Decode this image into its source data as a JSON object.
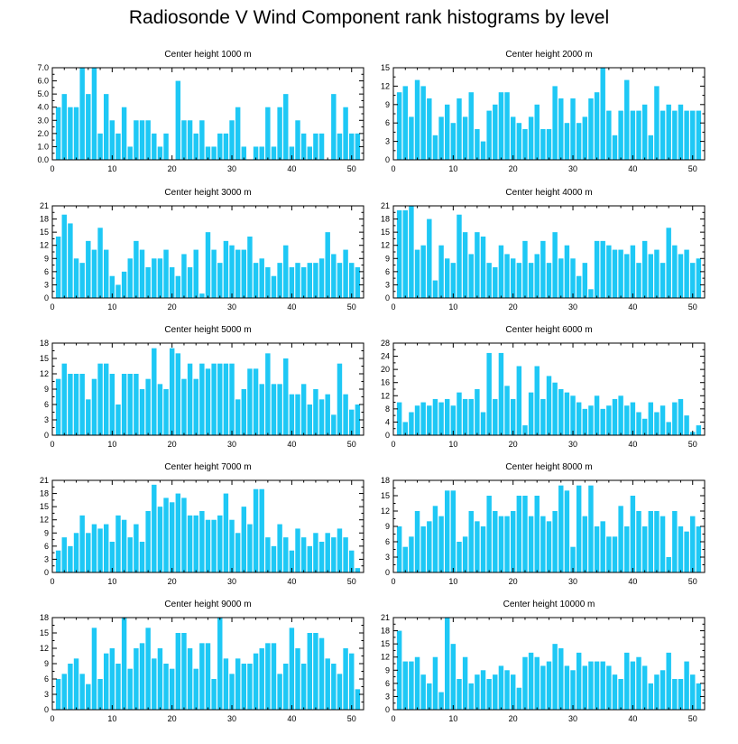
{
  "figure_title": "Radiosonde V Wind Component rank histograms by level",
  "colors": {
    "bar": "#1EC8F5",
    "axis": "#000000",
    "background": "#ffffff"
  },
  "chart_data": [
    {
      "type": "bar",
      "title": "Center height 1000 m",
      "xlim": [
        0,
        52
      ],
      "ylim": [
        0,
        7
      ],
      "xticks": [
        "0",
        "10",
        "20",
        "30",
        "40",
        "50"
      ],
      "yticks": [
        "0.0",
        "1.0",
        "2.0",
        "3.0",
        "4.0",
        "5.0",
        "6.0",
        "7.0"
      ],
      "x": [
        1,
        2,
        3,
        4,
        5,
        6,
        7,
        8,
        9,
        10,
        11,
        12,
        13,
        14,
        15,
        16,
        17,
        18,
        19,
        20,
        21,
        22,
        23,
        24,
        25,
        26,
        27,
        28,
        29,
        30,
        31,
        32,
        33,
        34,
        35,
        36,
        37,
        38,
        39,
        40,
        41,
        42,
        43,
        44,
        45,
        46,
        47,
        48,
        49,
        50,
        51
      ],
      "values": [
        4,
        5,
        4,
        4,
        7,
        5,
        7,
        2,
        5,
        3,
        2,
        4,
        1,
        3,
        3,
        3,
        2,
        1,
        2,
        0,
        6,
        3,
        3,
        2,
        3,
        1,
        1,
        2,
        2,
        3,
        4,
        1,
        0,
        1,
        1,
        4,
        1,
        4,
        5,
        1,
        3,
        2,
        1,
        2,
        2,
        0,
        5,
        2,
        4,
        2,
        2
      ]
    },
    {
      "type": "bar",
      "title": "Center height 2000 m",
      "xlim": [
        0,
        52
      ],
      "ylim": [
        0,
        15
      ],
      "xticks": [
        "0",
        "10",
        "20",
        "30",
        "40",
        "50"
      ],
      "yticks": [
        "0",
        "3",
        "6",
        "9",
        "12",
        "15"
      ],
      "x": [
        1,
        2,
        3,
        4,
        5,
        6,
        7,
        8,
        9,
        10,
        11,
        12,
        13,
        14,
        15,
        16,
        17,
        18,
        19,
        20,
        21,
        22,
        23,
        24,
        25,
        26,
        27,
        28,
        29,
        30,
        31,
        32,
        33,
        34,
        35,
        36,
        37,
        38,
        39,
        40,
        41,
        42,
        43,
        44,
        45,
        46,
        47,
        48,
        49,
        50,
        51
      ],
      "values": [
        11,
        12,
        7,
        13,
        12,
        10,
        4,
        7,
        9,
        6,
        10,
        7,
        11,
        5,
        3,
        8,
        9,
        11,
        11,
        7,
        6,
        5,
        7,
        9,
        5,
        5,
        12,
        10,
        6,
        10,
        6,
        7,
        10,
        11,
        15,
        8,
        4,
        8,
        13,
        8,
        8,
        9,
        4,
        12,
        8,
        9,
        8,
        9,
        8,
        8,
        8
      ]
    },
    {
      "type": "bar",
      "title": "Center height 3000 m",
      "xlim": [
        0,
        52
      ],
      "ylim": [
        0,
        21
      ],
      "xticks": [
        "0",
        "10",
        "20",
        "30",
        "40",
        "50"
      ],
      "yticks": [
        "0",
        "3",
        "6",
        "9",
        "12",
        "15",
        "18",
        "21"
      ],
      "x": [
        1,
        2,
        3,
        4,
        5,
        6,
        7,
        8,
        9,
        10,
        11,
        12,
        13,
        14,
        15,
        16,
        17,
        18,
        19,
        20,
        21,
        22,
        23,
        24,
        25,
        26,
        27,
        28,
        29,
        30,
        31,
        32,
        33,
        34,
        35,
        36,
        37,
        38,
        39,
        40,
        41,
        42,
        43,
        44,
        45,
        46,
        47,
        48,
        49,
        50,
        51
      ],
      "values": [
        14,
        19,
        17,
        9,
        8,
        13,
        11,
        16,
        11,
        5,
        3,
        6,
        9,
        13,
        11,
        7,
        9,
        9,
        11,
        7,
        5,
        10,
        7,
        11,
        1,
        15,
        11,
        8,
        13,
        12,
        11,
        11,
        14,
        8,
        9,
        7,
        5,
        8,
        12,
        7,
        8,
        7,
        8,
        8,
        9,
        15,
        10,
        8,
        11,
        8,
        7
      ]
    },
    {
      "type": "bar",
      "title": "Center height 4000 m",
      "xlim": [
        0,
        52
      ],
      "ylim": [
        0,
        21
      ],
      "xticks": [
        "0",
        "10",
        "20",
        "30",
        "40",
        "50"
      ],
      "yticks": [
        "0",
        "3",
        "6",
        "9",
        "12",
        "15",
        "18",
        "21"
      ],
      "x": [
        1,
        2,
        3,
        4,
        5,
        6,
        7,
        8,
        9,
        10,
        11,
        12,
        13,
        14,
        15,
        16,
        17,
        18,
        19,
        20,
        21,
        22,
        23,
        24,
        25,
        26,
        27,
        28,
        29,
        30,
        31,
        32,
        33,
        34,
        35,
        36,
        37,
        38,
        39,
        40,
        41,
        42,
        43,
        44,
        45,
        46,
        47,
        48,
        49,
        50,
        51
      ],
      "values": [
        20,
        20,
        21,
        11,
        12,
        18,
        4,
        12,
        9,
        8,
        19,
        15,
        10,
        15,
        14,
        8,
        7,
        12,
        10,
        9,
        8,
        13,
        8,
        10,
        13,
        8,
        15,
        9,
        12,
        9,
        5,
        8,
        2,
        13,
        13,
        12,
        11,
        11,
        10,
        12,
        8,
        13,
        10,
        11,
        8,
        16,
        12,
        10,
        11,
        8,
        9
      ]
    },
    {
      "type": "bar",
      "title": "Center height 5000 m",
      "xlim": [
        0,
        52
      ],
      "ylim": [
        0,
        18
      ],
      "xticks": [
        "0",
        "10",
        "20",
        "30",
        "40",
        "50"
      ],
      "yticks": [
        "0",
        "3",
        "6",
        "9",
        "12",
        "15",
        "18"
      ],
      "x": [
        1,
        2,
        3,
        4,
        5,
        6,
        7,
        8,
        9,
        10,
        11,
        12,
        13,
        14,
        15,
        16,
        17,
        18,
        19,
        20,
        21,
        22,
        23,
        24,
        25,
        26,
        27,
        28,
        29,
        30,
        31,
        32,
        33,
        34,
        35,
        36,
        37,
        38,
        39,
        40,
        41,
        42,
        43,
        44,
        45,
        46,
        47,
        48,
        49,
        50,
        51
      ],
      "values": [
        11,
        14,
        12,
        12,
        12,
        7,
        11,
        14,
        14,
        12,
        6,
        12,
        12,
        12,
        9,
        11,
        17,
        10,
        9,
        17,
        16,
        11,
        14,
        11,
        14,
        13,
        14,
        14,
        14,
        14,
        7,
        9,
        13,
        13,
        10,
        16,
        10,
        10,
        15,
        8,
        8,
        10,
        6,
        9,
        7,
        8,
        4,
        14,
        8,
        5,
        6
      ]
    },
    {
      "type": "bar",
      "title": "Center height 6000 m",
      "xlim": [
        0,
        52
      ],
      "ylim": [
        0,
        28
      ],
      "xticks": [
        "0",
        "10",
        "20",
        "30",
        "40",
        "50"
      ],
      "yticks": [
        "0",
        "4",
        "8",
        "12",
        "16",
        "20",
        "24",
        "28"
      ],
      "x": [
        1,
        2,
        3,
        4,
        5,
        6,
        7,
        8,
        9,
        10,
        11,
        12,
        13,
        14,
        15,
        16,
        17,
        18,
        19,
        20,
        21,
        22,
        23,
        24,
        25,
        26,
        27,
        28,
        29,
        30,
        31,
        32,
        33,
        34,
        35,
        36,
        37,
        38,
        39,
        40,
        41,
        42,
        43,
        44,
        45,
        46,
        47,
        48,
        49,
        50,
        51
      ],
      "values": [
        10,
        4,
        7,
        9,
        10,
        9,
        11,
        10,
        11,
        9,
        13,
        11,
        11,
        14,
        7,
        25,
        11,
        25,
        15,
        11,
        21,
        3,
        13,
        21,
        11,
        18,
        16,
        14,
        13,
        12,
        10,
        8,
        9,
        12,
        8,
        9,
        11,
        12,
        9,
        10,
        7,
        5,
        10,
        7,
        9,
        4,
        10,
        11,
        6,
        1,
        3
      ]
    },
    {
      "type": "bar",
      "title": "Center height 7000 m",
      "xlim": [
        0,
        52
      ],
      "ylim": [
        0,
        21
      ],
      "xticks": [
        "0",
        "10",
        "20",
        "30",
        "40",
        "50"
      ],
      "yticks": [
        "0",
        "3",
        "6",
        "9",
        "12",
        "15",
        "18",
        "21"
      ],
      "x": [
        1,
        2,
        3,
        4,
        5,
        6,
        7,
        8,
        9,
        10,
        11,
        12,
        13,
        14,
        15,
        16,
        17,
        18,
        19,
        20,
        21,
        22,
        23,
        24,
        25,
        26,
        27,
        28,
        29,
        30,
        31,
        32,
        33,
        34,
        35,
        36,
        37,
        38,
        39,
        40,
        41,
        42,
        43,
        44,
        45,
        46,
        47,
        48,
        49,
        50,
        51
      ],
      "values": [
        5,
        8,
        6,
        9,
        13,
        9,
        11,
        10,
        11,
        7,
        13,
        12,
        8,
        11,
        7,
        14,
        20,
        15,
        17,
        16,
        18,
        17,
        13,
        13,
        14,
        12,
        12,
        13,
        18,
        12,
        9,
        15,
        11,
        19,
        19,
        8,
        6,
        11,
        8,
        5,
        10,
        8,
        6,
        9,
        7,
        9,
        8,
        10,
        8,
        5,
        1
      ]
    },
    {
      "type": "bar",
      "title": "Center height 8000 m",
      "xlim": [
        0,
        52
      ],
      "ylim": [
        0,
        18
      ],
      "xticks": [
        "0",
        "10",
        "20",
        "30",
        "40",
        "50"
      ],
      "yticks": [
        "0",
        "3",
        "6",
        "9",
        "12",
        "15",
        "18"
      ],
      "x": [
        1,
        2,
        3,
        4,
        5,
        6,
        7,
        8,
        9,
        10,
        11,
        12,
        13,
        14,
        15,
        16,
        17,
        18,
        19,
        20,
        21,
        22,
        23,
        24,
        25,
        26,
        27,
        28,
        29,
        30,
        31,
        32,
        33,
        34,
        35,
        36,
        37,
        38,
        39,
        40,
        41,
        42,
        43,
        44,
        45,
        46,
        47,
        48,
        49,
        50,
        51
      ],
      "values": [
        9,
        5,
        7,
        12,
        9,
        10,
        13,
        11,
        16,
        16,
        6,
        7,
        12,
        10,
        9,
        15,
        12,
        11,
        11,
        12,
        15,
        15,
        11,
        15,
        11,
        10,
        12,
        17,
        16,
        5,
        17,
        11,
        17,
        9,
        10,
        7,
        7,
        13,
        9,
        15,
        12,
        9,
        12,
        12,
        11,
        3,
        12,
        9,
        8,
        11,
        9
      ]
    },
    {
      "type": "bar",
      "title": "Center height 9000 m",
      "xlim": [
        0,
        52
      ],
      "ylim": [
        0,
        18
      ],
      "xticks": [
        "0",
        "10",
        "20",
        "30",
        "40",
        "50"
      ],
      "yticks": [
        "0",
        "3",
        "6",
        "9",
        "12",
        "15",
        "18"
      ],
      "x": [
        1,
        2,
        3,
        4,
        5,
        6,
        7,
        8,
        9,
        10,
        11,
        12,
        13,
        14,
        15,
        16,
        17,
        18,
        19,
        20,
        21,
        22,
        23,
        24,
        25,
        26,
        27,
        28,
        29,
        30,
        31,
        32,
        33,
        34,
        35,
        36,
        37,
        38,
        39,
        40,
        41,
        42,
        43,
        44,
        45,
        46,
        47,
        48,
        49,
        50,
        51
      ],
      "values": [
        6,
        7,
        9,
        10,
        7,
        5,
        16,
        6,
        11,
        12,
        9,
        18,
        8,
        12,
        13,
        16,
        10,
        12,
        9,
        8,
        15,
        15,
        12,
        8,
        13,
        13,
        6,
        18,
        10,
        7,
        10,
        9,
        9,
        11,
        12,
        13,
        13,
        7,
        9,
        16,
        12,
        9,
        15,
        15,
        14,
        10,
        9,
        7,
        12,
        11,
        4
      ]
    },
    {
      "type": "bar",
      "title": "Center height 10000 m",
      "xlim": [
        0,
        52
      ],
      "ylim": [
        0,
        21
      ],
      "xticks": [
        "0",
        "10",
        "20",
        "30",
        "40",
        "50"
      ],
      "yticks": [
        "0",
        "3",
        "6",
        "9",
        "12",
        "15",
        "18",
        "21"
      ],
      "x": [
        1,
        2,
        3,
        4,
        5,
        6,
        7,
        8,
        9,
        10,
        11,
        12,
        13,
        14,
        15,
        16,
        17,
        18,
        19,
        20,
        21,
        22,
        23,
        24,
        25,
        26,
        27,
        28,
        29,
        30,
        31,
        32,
        33,
        34,
        35,
        36,
        37,
        38,
        39,
        40,
        41,
        42,
        43,
        44,
        45,
        46,
        47,
        48,
        49,
        50,
        51
      ],
      "values": [
        18,
        11,
        11,
        12,
        8,
        6,
        12,
        4,
        21,
        15,
        7,
        12,
        6,
        8,
        9,
        7,
        8,
        10,
        9,
        8,
        5,
        12,
        13,
        12,
        10,
        11,
        15,
        14,
        10,
        9,
        13,
        10,
        11,
        11,
        11,
        10,
        8,
        7,
        13,
        11,
        12,
        10,
        6,
        8,
        9,
        13,
        7,
        7,
        11,
        8,
        6
      ]
    }
  ]
}
